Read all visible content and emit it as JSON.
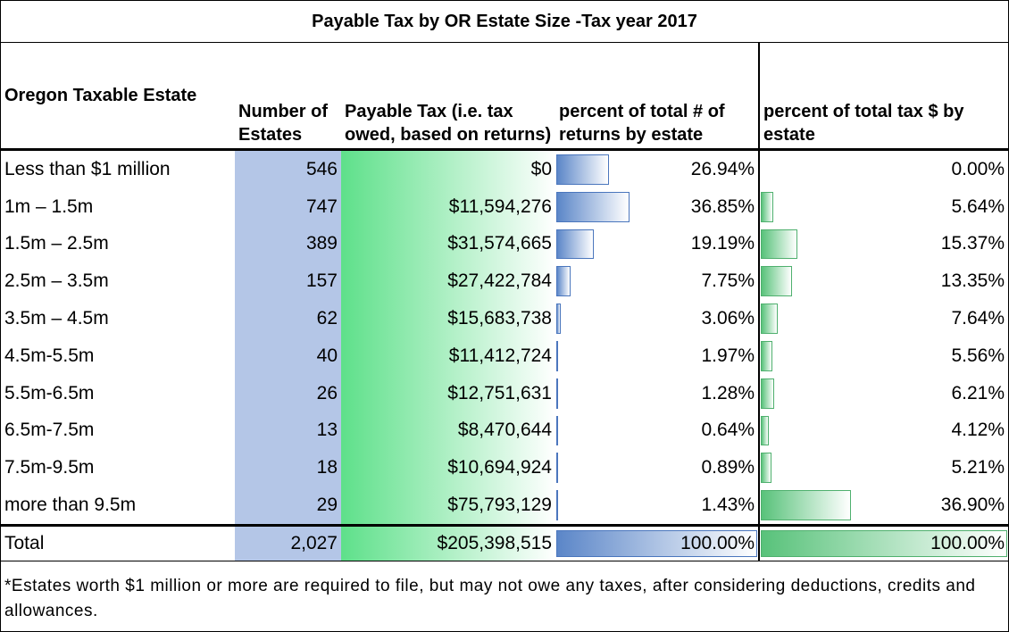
{
  "title": "Payable Tax by OR Estate Size -Tax year 2017",
  "header": [
    "Oregon Taxable Estate",
    "Number of Estates",
    "Payable Tax (i.e. tax owed, based on returns)",
    "percent of total # of returns by estate",
    "percent of total tax $ by estate"
  ],
  "rows": [
    [
      "Less than $1 million",
      "546",
      "$0",
      "26.94%",
      "0.00%"
    ],
    [
      "1m – 1.5m",
      "747",
      "$11,594,276",
      "36.85%",
      "5.64%"
    ],
    [
      "1.5m – 2.5m",
      "389",
      "$31,574,665",
      "19.19%",
      "15.37%"
    ],
    [
      "2.5m – 3.5m",
      "157",
      "$27,422,784",
      "7.75%",
      "13.35%"
    ],
    [
      "3.5m – 4.5m",
      "62",
      "$15,683,738",
      "3.06%",
      "7.64%"
    ],
    [
      "4.5m-5.5m",
      "40",
      "$11,412,724",
      "1.97%",
      "5.56%"
    ],
    [
      "5.5m-6.5m",
      "26",
      "$12,751,631",
      "1.28%",
      "6.21%"
    ],
    [
      "6.5m-7.5m",
      "13",
      "$8,470,644",
      "0.64%",
      "4.12%"
    ],
    [
      "7.5m-9.5m",
      "18",
      "$10,694,924",
      "0.89%",
      "5.21%"
    ],
    [
      "more than 9.5m",
      "29",
      "$75,793,129",
      "1.43%",
      "36.90%"
    ]
  ],
  "total": [
    "Total",
    "2,027",
    "$205,398,515",
    "100.00%",
    "100.00%"
  ],
  "note": "*Estates worth $1 million or more are required to file, but may not owe any taxes, after considering deductions, credits and allowances."
}
